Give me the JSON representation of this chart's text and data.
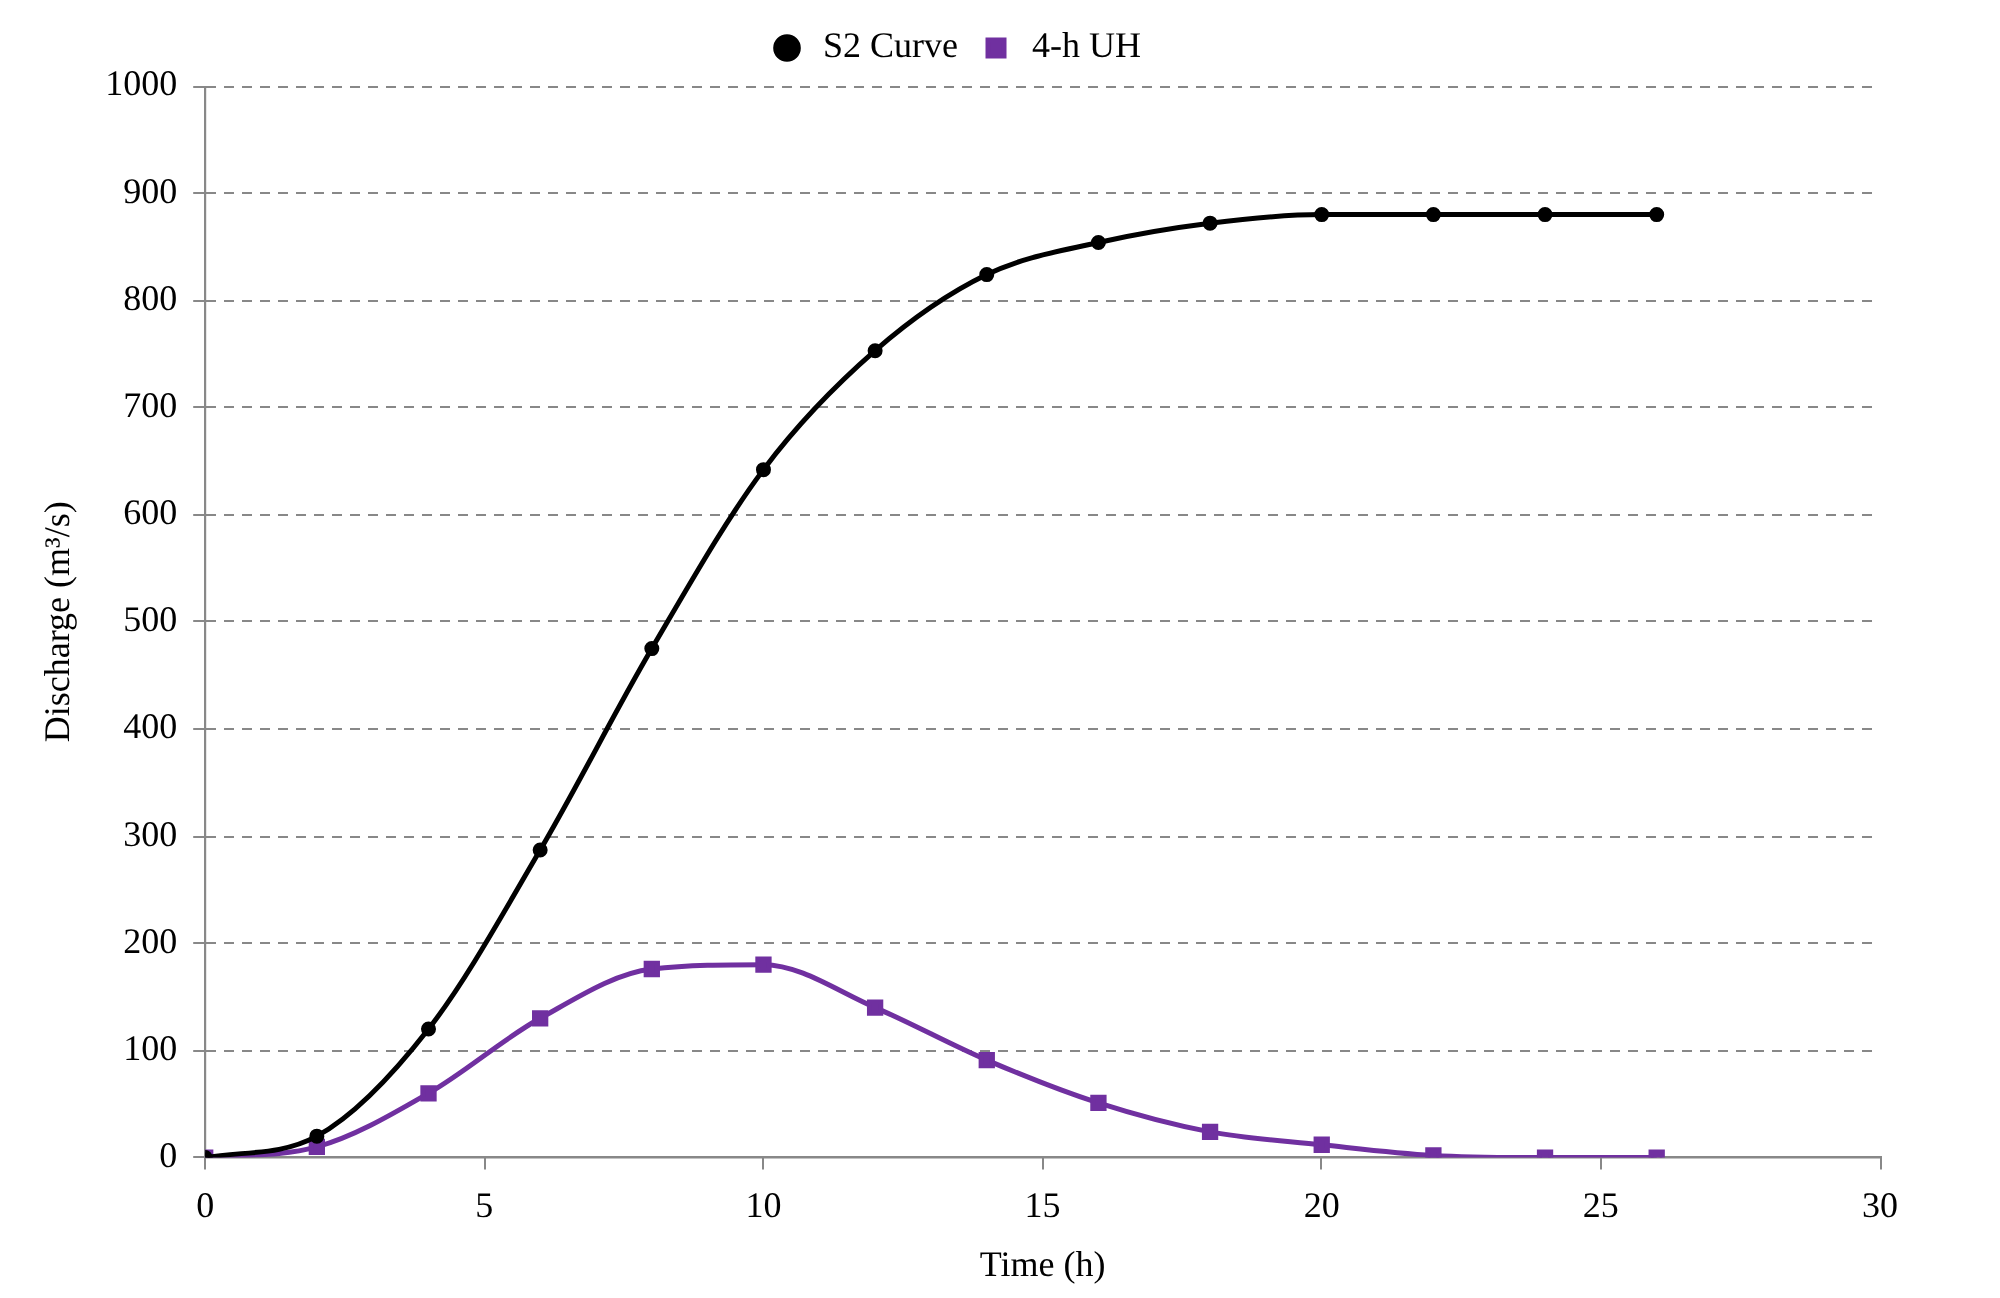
{
  "chart_data": {
    "type": "line",
    "xlabel": "Time (h)",
    "ylabel": "Discharge (m³/s)",
    "x": [
      0,
      2,
      4,
      6,
      8,
      10,
      12,
      14,
      16,
      18,
      20,
      22,
      24,
      26
    ],
    "series": [
      {
        "name": "S2 Curve",
        "color": "#000000",
        "marker": "circle",
        "values": [
          0,
          20,
          120,
          287,
          475,
          642,
          753,
          824,
          854,
          872,
          880,
          880,
          880,
          880
        ]
      },
      {
        "name": "4-h UH",
        "color": "#7030a0",
        "marker": "square",
        "values": [
          0,
          10,
          60,
          130,
          176,
          180,
          140,
          91,
          51,
          24,
          12,
          2,
          0,
          0
        ]
      }
    ],
    "xlim": [
      0,
      30
    ],
    "xticks": [
      0,
      5,
      10,
      15,
      20,
      25,
      30
    ],
    "ylim": [
      0,
      1000
    ],
    "yticks": [
      0,
      100,
      200,
      300,
      400,
      500,
      600,
      700,
      800,
      900,
      1000
    ],
    "grid": "y",
    "legend": "top"
  }
}
